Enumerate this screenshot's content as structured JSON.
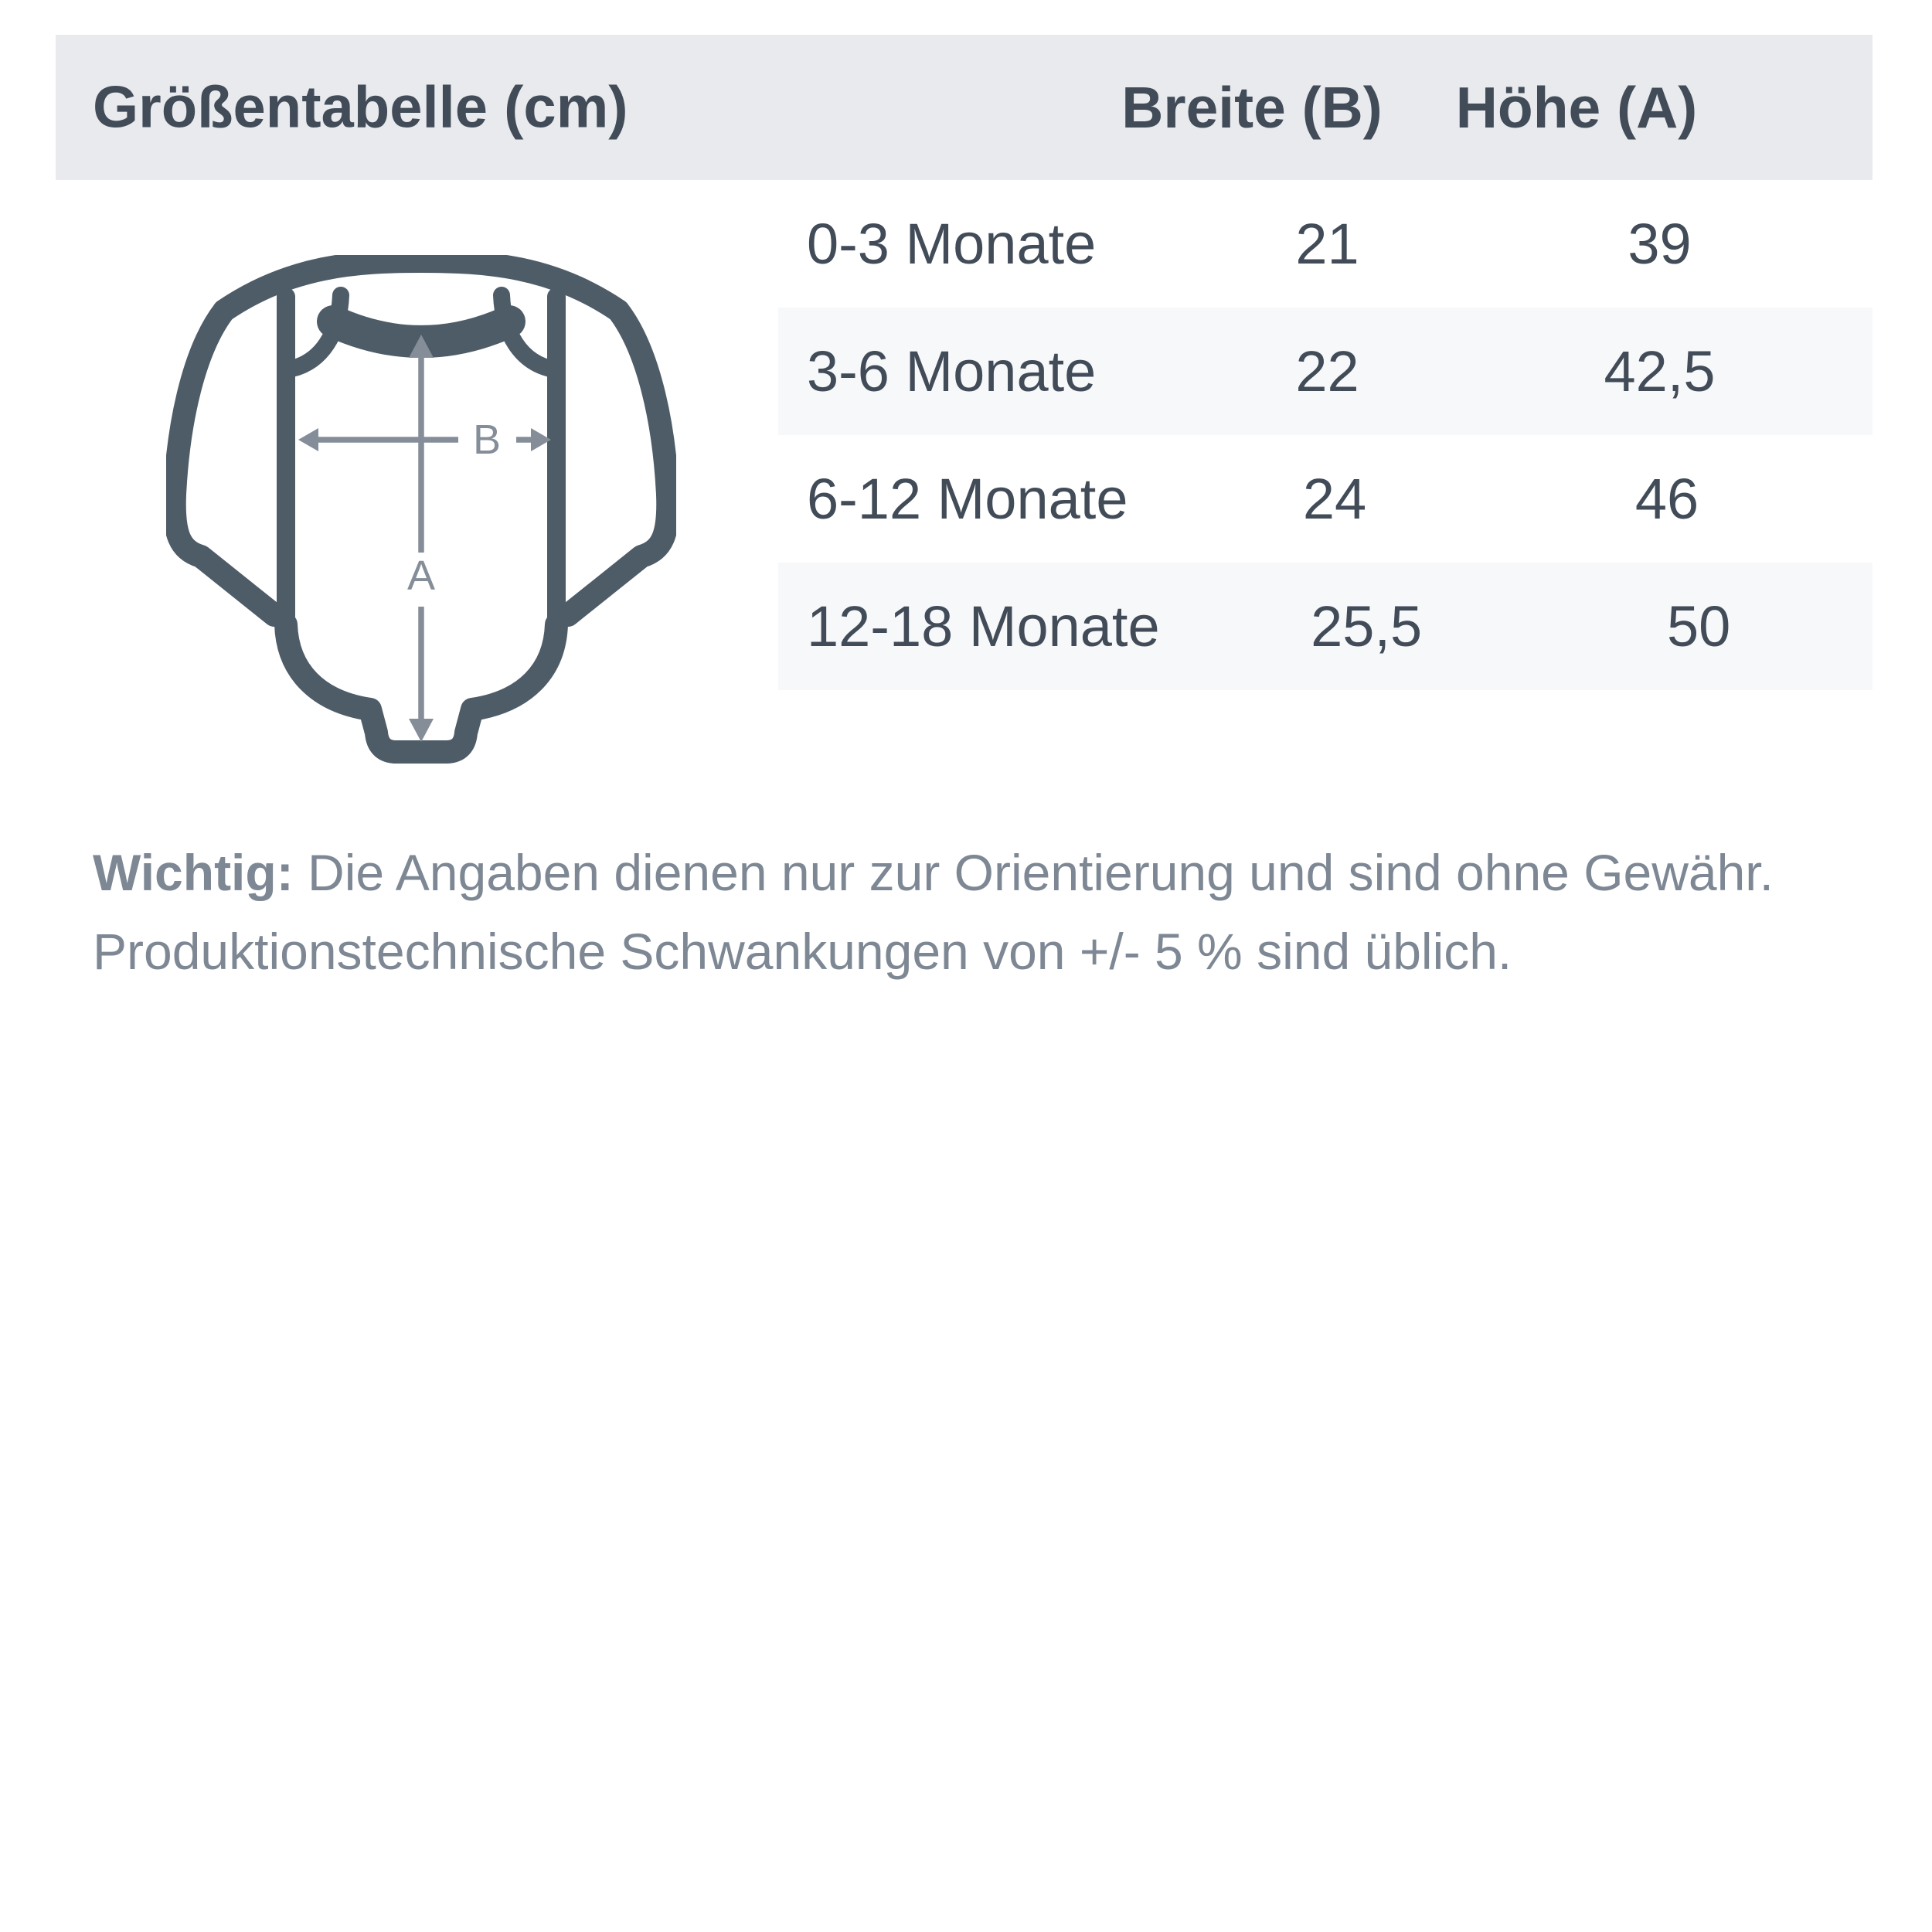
{
  "chart_data": {
    "type": "table",
    "title": "Größentabelle (cm)",
    "columns": [
      "Breite (B)",
      "Höhe (A)"
    ],
    "rows": [
      [
        "0-3 Monate",
        "21",
        "39"
      ],
      [
        "3-6 Monate",
        "22",
        "42,5"
      ],
      [
        "6-12 Monate",
        "24",
        "46"
      ],
      [
        "12-18 Monate",
        "25,5",
        "50"
      ]
    ]
  },
  "diagram": {
    "subject": "baby-bodysuit-outline",
    "width_label": "B",
    "height_label": "A"
  },
  "footer": {
    "important_label": "Wichtig:",
    "line1_rest": "Die Angaben dienen nur zur Orientierung und sind ohne Gewähr.",
    "line2": "Produktionstechnische Schwankungen von +/- 5 % sind üblich."
  },
  "colors": {
    "header_band": "#e8eaed",
    "row_alt": "#f7f8fa",
    "text_dark": "#424c58",
    "bodysuit_outline": "#4e5c68",
    "arrow_gray": "#858e98",
    "footer_text": "#7e8894"
  }
}
